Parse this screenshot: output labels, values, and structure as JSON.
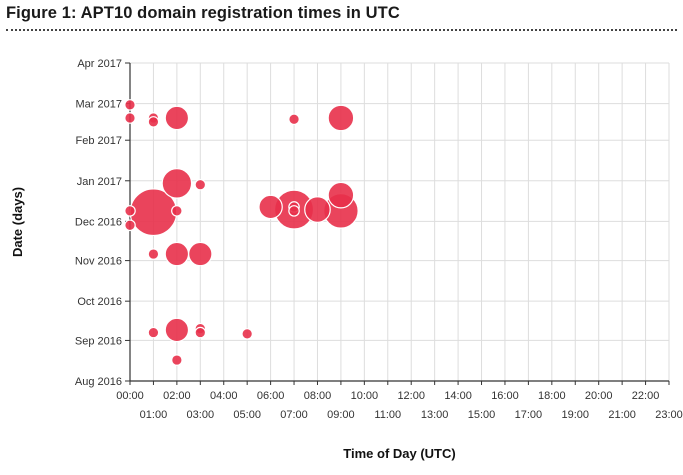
{
  "figure_title": "Figure 1: APT10 domain registration times in UTC",
  "colors": {
    "bubble": "#e8304a",
    "bubble_stroke": "#ffffff",
    "grid": "#dddddd",
    "axis": "#333333"
  },
  "chart_data": {
    "type": "scatter",
    "title": "Figure 1: APT10 domain registration times in UTC",
    "xlabel": "Time of Day (UTC)",
    "ylabel": "Date (days)",
    "x_ticks": [
      "00:00",
      "01:00",
      "02:00",
      "03:00",
      "04:00",
      "05:00",
      "06:00",
      "07:00",
      "08:00",
      "09:00",
      "10:00",
      "11:00",
      "12:00",
      "13:00",
      "14:00",
      "15:00",
      "16:00",
      "17:00",
      "18:00",
      "19:00",
      "20:00",
      "21:00",
      "22:00",
      "23:00"
    ],
    "y_ticks": [
      "Aug 2016",
      "Sep 2016",
      "Oct 2016",
      "Nov 2016",
      "Dec 2016",
      "Jan 2017",
      "Feb 2017",
      "Mar 2017",
      "Apr 2017"
    ],
    "xlim": [
      0,
      23
    ],
    "ylim": [
      "2016-08-01",
      "2017-04-01"
    ],
    "grid": true,
    "legend": "none",
    "points": [
      {
        "x": 0,
        "y": "2017-02-28",
        "size": 1
      },
      {
        "x": 0,
        "y": "2017-02-18",
        "size": 1
      },
      {
        "x": 0,
        "y": "2016-12-09",
        "size": 1
      },
      {
        "x": 0,
        "y": "2016-11-28",
        "size": 1
      },
      {
        "x": 1,
        "y": "2017-02-18",
        "size": 1
      },
      {
        "x": 1,
        "y": "2017-02-15",
        "size": 1
      },
      {
        "x": 1,
        "y": "2016-12-08",
        "size": 20
      },
      {
        "x": 1,
        "y": "2016-11-06",
        "size": 1
      },
      {
        "x": 1,
        "y": "2016-09-07",
        "size": 1
      },
      {
        "x": 2,
        "y": "2017-02-18",
        "size": 5
      },
      {
        "x": 2,
        "y": "2016-12-30",
        "size": 8
      },
      {
        "x": 2,
        "y": "2016-12-09",
        "size": 1
      },
      {
        "x": 2,
        "y": "2016-11-06",
        "size": 5
      },
      {
        "x": 2,
        "y": "2016-09-09",
        "size": 5
      },
      {
        "x": 2,
        "y": "2016-08-17",
        "size": 1
      },
      {
        "x": 3,
        "y": "2016-12-29",
        "size": 1
      },
      {
        "x": 3,
        "y": "2016-11-06",
        "size": 5
      },
      {
        "x": 3,
        "y": "2016-09-10",
        "size": 1
      },
      {
        "x": 3,
        "y": "2016-09-07",
        "size": 1
      },
      {
        "x": 5,
        "y": "2016-09-06",
        "size": 1
      },
      {
        "x": 6,
        "y": "2016-12-12",
        "size": 5
      },
      {
        "x": 7,
        "y": "2017-02-17",
        "size": 1
      },
      {
        "x": 7,
        "y": "2016-12-10",
        "size": 14
      },
      {
        "x": 7,
        "y": "2016-12-12",
        "size": 1
      },
      {
        "x": 7,
        "y": "2016-12-09",
        "size": 1
      },
      {
        "x": 8,
        "y": "2016-12-10",
        "size": 6
      },
      {
        "x": 9,
        "y": "2017-02-18",
        "size": 6
      },
      {
        "x": 9,
        "y": "2016-12-21",
        "size": 6
      },
      {
        "x": 9,
        "y": "2016-12-09",
        "size": 11
      }
    ]
  }
}
